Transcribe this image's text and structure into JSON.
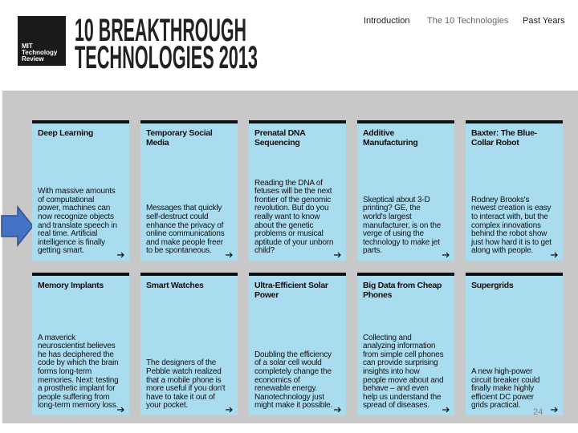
{
  "header": {
    "logo": [
      "MIT",
      "Technology",
      "Review"
    ],
    "title": [
      "10 BREAKTHROUGH",
      "TECHNOLOGIES 2013"
    ]
  },
  "nav": [
    "Introduction",
    "The 10 Technologies",
    "Past Years"
  ],
  "cards": [
    {
      "title": "Deep Learning",
      "text": "With massive amounts of computational power, machines can now recognize objects and translate speech in real time. Artificial intelligence is finally getting smart."
    },
    {
      "title": "Temporary Social Media",
      "text": "Messages that quickly self-destruct could enhance the privacy of online communications and make people freer to be spontaneous."
    },
    {
      "title": "Prenatal DNA Sequencing",
      "text": "Reading the DNA of fetuses will be the next frontier of the genomic revolution. But do you really want to know about the genetic problems or musical aptitude of your unborn child?"
    },
    {
      "title": "Additive Manufacturing",
      "text": "Skeptical about 3-D printing? GE, the world's largest manufacturer, is on the verge of using the technology to make jet parts."
    },
    {
      "title": "Baxter: The Blue-Collar Robot",
      "text": "Rodney Brooks's newest creation is easy to interact with, but the complex innovations behind the robot show just how hard it is to get along with people."
    },
    {
      "title": "Memory Implants",
      "text": "A maverick neuroscientist believes he has deciphered the code by which the brain forms long-term memories. Next: testing a prosthetic implant for people suffering from long-term memory loss."
    },
    {
      "title": "Smart Watches",
      "text": "The designers of the Pebble watch realized that a mobile phone is more useful if you don't have to take it out of your pocket."
    },
    {
      "title": "Ultra-Efficient Solar Power",
      "text": "Doubling the efficiency of a solar cell would completely change the economics of renewable energy. Nanotechnology just might make it possible."
    },
    {
      "title": "Big Data from Cheap Phones",
      "text": "Collecting and analyzing information from simple cell phones can provide surprising insights into how people move about and behave – and even help us understand the spread of diseases."
    },
    {
      "title": "Supergrids",
      "text": "A new high-power circuit breaker could finally make highly efficient DC power grids practical."
    }
  ],
  "page_number": "24"
}
